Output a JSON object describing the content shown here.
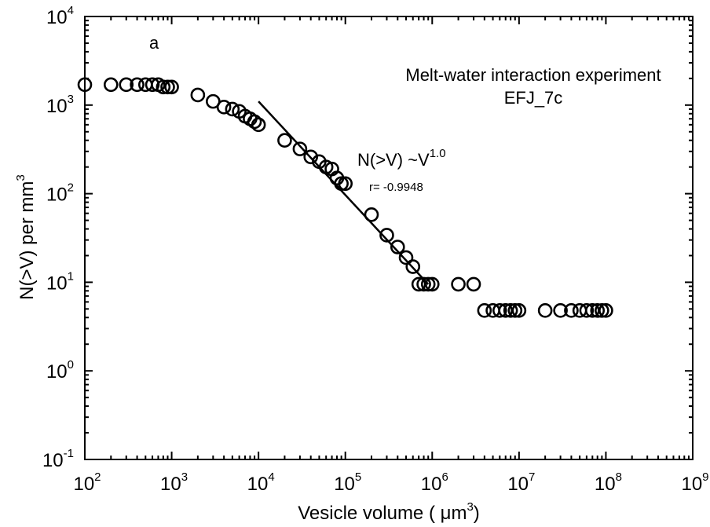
{
  "chart_data": {
    "type": "scatter",
    "panel_label": "a",
    "title_line1": "Melt-water interaction experiment",
    "title_line2": "EFJ_7c",
    "xlabel_prefix": "Vesicle volume ( ",
    "xlabel_unit": "μm",
    "xlabel_exp": "3",
    "xlabel_suffix": ")",
    "ylabel_prefix": "N(>V) per mm",
    "ylabel_exp": "3",
    "xscale": "log",
    "yscale": "log",
    "xlim": [
      100,
      1000000000
    ],
    "ylim": [
      0.1,
      10000
    ],
    "x_tick_exponents": [
      "2",
      "3",
      "4",
      "5",
      "6",
      "7",
      "8",
      "9"
    ],
    "y_tick_exponents": [
      "-1",
      "0",
      "1",
      "2",
      "3",
      "4"
    ],
    "tick_base": "10",
    "fit_label_prefix": "N(>V) ~V",
    "fit_label_exp": "1.0",
    "fit_r_label": "r= -0.9948",
    "fit_line": {
      "x": [
        10000,
        900000
      ],
      "y": [
        1100,
        9.5
      ]
    },
    "points": [
      {
        "x": 100,
        "y": 1700
      },
      {
        "x": 200,
        "y": 1700
      },
      {
        "x": 300,
        "y": 1700
      },
      {
        "x": 400,
        "y": 1700
      },
      {
        "x": 500,
        "y": 1700
      },
      {
        "x": 600,
        "y": 1700
      },
      {
        "x": 700,
        "y": 1700
      },
      {
        "x": 800,
        "y": 1600
      },
      {
        "x": 900,
        "y": 1600
      },
      {
        "x": 1000,
        "y": 1600
      },
      {
        "x": 2000,
        "y": 1300
      },
      {
        "x": 3000,
        "y": 1100
      },
      {
        "x": 4000,
        "y": 950
      },
      {
        "x": 5000,
        "y": 900
      },
      {
        "x": 6000,
        "y": 850
      },
      {
        "x": 7000,
        "y": 750
      },
      {
        "x": 8000,
        "y": 700
      },
      {
        "x": 9000,
        "y": 650
      },
      {
        "x": 10000,
        "y": 600
      },
      {
        "x": 20000,
        "y": 400
      },
      {
        "x": 30000,
        "y": 320
      },
      {
        "x": 40000,
        "y": 260
      },
      {
        "x": 50000,
        "y": 230
      },
      {
        "x": 60000,
        "y": 200
      },
      {
        "x": 70000,
        "y": 190
      },
      {
        "x": 80000,
        "y": 150
      },
      {
        "x": 90000,
        "y": 130
      },
      {
        "x": 100000,
        "y": 130
      },
      {
        "x": 200000,
        "y": 58
      },
      {
        "x": 300000,
        "y": 34
      },
      {
        "x": 400000,
        "y": 25
      },
      {
        "x": 500000,
        "y": 19
      },
      {
        "x": 600000,
        "y": 15
      },
      {
        "x": 700000,
        "y": 9.5
      },
      {
        "x": 800000,
        "y": 9.5
      },
      {
        "x": 900000,
        "y": 9.5
      },
      {
        "x": 1000000,
        "y": 9.5
      },
      {
        "x": 2000000,
        "y": 9.5
      },
      {
        "x": 3000000,
        "y": 9.5
      },
      {
        "x": 4000000,
        "y": 4.8
      },
      {
        "x": 5000000,
        "y": 4.8
      },
      {
        "x": 6000000,
        "y": 4.8
      },
      {
        "x": 7000000,
        "y": 4.8
      },
      {
        "x": 8000000,
        "y": 4.8
      },
      {
        "x": 9000000,
        "y": 4.8
      },
      {
        "x": 10000000,
        "y": 4.8
      },
      {
        "x": 20000000,
        "y": 4.8
      },
      {
        "x": 30000000,
        "y": 4.8
      },
      {
        "x": 40000000,
        "y": 4.8
      },
      {
        "x": 50000000,
        "y": 4.8
      },
      {
        "x": 60000000,
        "y": 4.8
      },
      {
        "x": 70000000,
        "y": 4.8
      },
      {
        "x": 80000000,
        "y": 4.8
      },
      {
        "x": 90000000,
        "y": 4.8
      },
      {
        "x": 100000000,
        "y": 4.8
      }
    ]
  }
}
